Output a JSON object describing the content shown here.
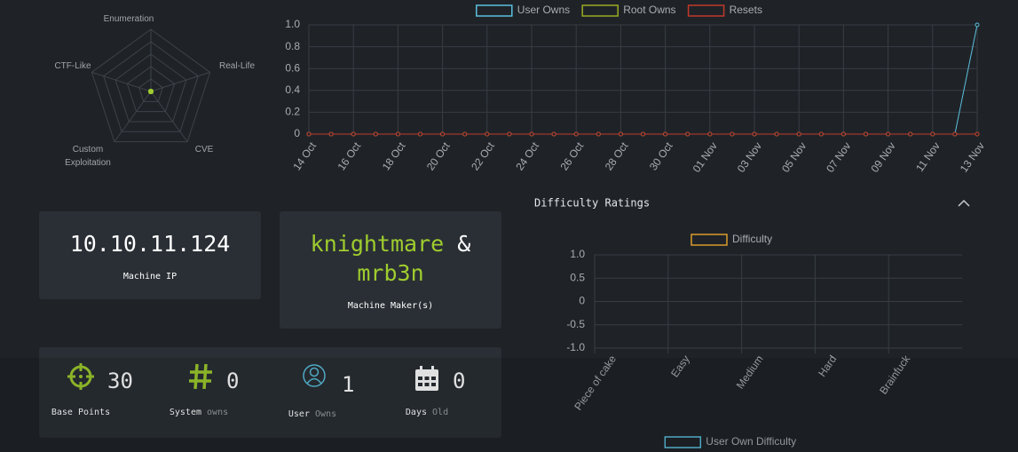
{
  "chart_data": [
    {
      "type": "radar",
      "labels": [
        "Enumeration",
        "Real-Life",
        "CVE",
        "Custom Exploitation",
        "CTF-Like"
      ],
      "values": [
        0,
        0,
        0,
        0,
        0
      ],
      "rlim": [
        0,
        10
      ],
      "color": "#9fcc2e"
    },
    {
      "type": "line",
      "x": [
        "14 Oct",
        null,
        "16 Oct",
        null,
        "18 Oct",
        null,
        "20 Oct",
        null,
        "22 Oct",
        null,
        "24 Oct",
        null,
        "26 Oct",
        null,
        "28 Oct",
        null,
        "30 Oct",
        null,
        "01 Nov",
        null,
        "03 Nov",
        null,
        "05 Nov",
        null,
        "07 Nov",
        null,
        "09 Nov",
        null,
        "11 Nov",
        null,
        "13 Nov"
      ],
      "series": [
        {
          "name": "User Owns",
          "color": "#5bc0de",
          "values": [
            0,
            0,
            0,
            0,
            0,
            0,
            0,
            0,
            0,
            0,
            0,
            0,
            0,
            0,
            0,
            0,
            0,
            0,
            0,
            0,
            0,
            0,
            0,
            0,
            0,
            0,
            0,
            0,
            0,
            0,
            1
          ]
        },
        {
          "name": "Root Owns",
          "color": "#9aab22",
          "values": [
            0,
            0,
            0,
            0,
            0,
            0,
            0,
            0,
            0,
            0,
            0,
            0,
            0,
            0,
            0,
            0,
            0,
            0,
            0,
            0,
            0,
            0,
            0,
            0,
            0,
            0,
            0,
            0,
            0,
            0,
            0
          ]
        },
        {
          "name": "Resets",
          "color": "#c0392b",
          "values": [
            0,
            0,
            0,
            0,
            0,
            0,
            0,
            0,
            0,
            0,
            0,
            0,
            0,
            0,
            0,
            0,
            0,
            0,
            0,
            0,
            0,
            0,
            0,
            0,
            0,
            0,
            0,
            0,
            0,
            0,
            0
          ]
        }
      ],
      "ylim": [
        0,
        1
      ],
      "yticks": [
        {
          "value": 1,
          "label": "1.0"
        },
        0.8,
        0.6,
        0.4,
        0.2,
        0
      ],
      "grid": true
    },
    {
      "type": "bar",
      "title": "Difficulty Ratings",
      "categories": [
        "Piece of cake",
        "Easy",
        "Medium",
        "Hard",
        "Brainfuck"
      ],
      "series": [
        {
          "name": "Difficulty",
          "color": "#d89b2b",
          "values": [
            null,
            null,
            null,
            null,
            null
          ]
        }
      ],
      "ylim": [
        -1,
        1
      ],
      "yticks": [
        {
          "value": 1,
          "label": "1.0"
        },
        0.5,
        0,
        -0.5,
        {
          "value": -1,
          "label": "-1.0"
        }
      ],
      "grid": true
    },
    {
      "type": "bar",
      "series": [
        {
          "name": "User Own Difficulty",
          "color": "#5bc0de",
          "values": []
        }
      ]
    }
  ],
  "machine": {
    "ip": "10.10.11.124",
    "ip_label": "Machine IP",
    "makers": [
      "knightmare",
      "mrb3n"
    ],
    "makers_joiner": "&",
    "makers_label": "Machine Maker(s)"
  },
  "stats": [
    {
      "value": 30,
      "label": "Base Points"
    },
    {
      "value": 0,
      "label": "System",
      "suffix": "owns"
    },
    {
      "value": 1,
      "label": "User",
      "suffix": "Owns"
    },
    {
      "value": 0,
      "label": "Days",
      "suffix": "Old"
    }
  ]
}
